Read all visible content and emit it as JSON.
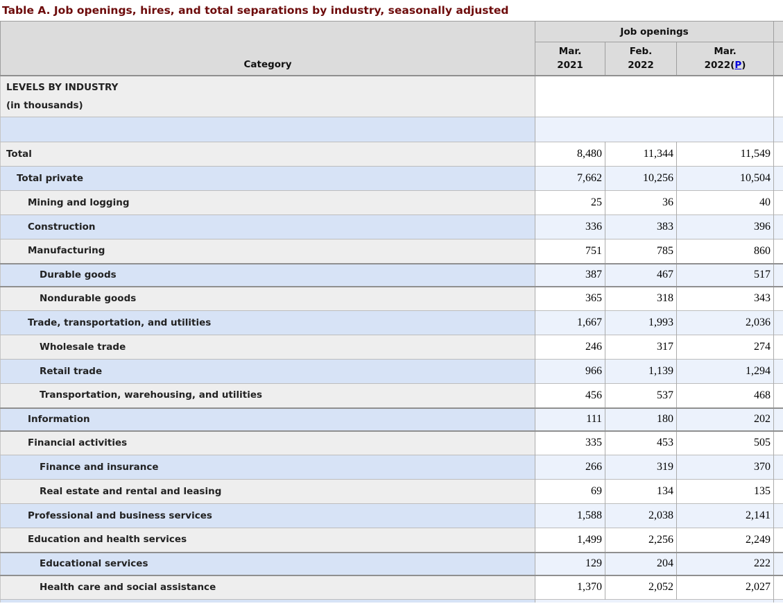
{
  "title": "Table A. Job openings, hires, and total separations by industry, seasonally adjusted",
  "table": {
    "category_header": "Category",
    "group_header": "Job openings",
    "columns": [
      {
        "line1": "Mar.",
        "line2": "2021"
      },
      {
        "line1": "Feb.",
        "line2": "2022"
      },
      {
        "line1": "Mar.",
        "line2_pre": "2022(",
        "preliminary_link": "P",
        "line2_post": ")"
      }
    ],
    "section_row": {
      "line1": "LEVELS BY INDUSTRY",
      "line2": "(in thousands)"
    },
    "rows": [
      {
        "label": "Total",
        "level": 0,
        "values": [
          "8,480",
          "11,344",
          "11,549"
        ]
      },
      {
        "label": "Total private",
        "level": 1,
        "values": [
          "7,662",
          "10,256",
          "10,504"
        ]
      },
      {
        "label": "Mining and logging",
        "level": 2,
        "values": [
          "25",
          "36",
          "40"
        ]
      },
      {
        "label": "Construction",
        "level": 2,
        "values": [
          "336",
          "383",
          "396"
        ]
      },
      {
        "label": "Manufacturing",
        "level": 2,
        "values": [
          "751",
          "785",
          "860"
        ]
      },
      {
        "label": "Durable goods",
        "level": 3,
        "values": [
          "387",
          "467",
          "517"
        ],
        "section_break": true
      },
      {
        "label": "Nondurable goods",
        "level": 3,
        "values": [
          "365",
          "318",
          "343"
        ]
      },
      {
        "label": "Trade, transportation, and utilities",
        "level": 2,
        "values": [
          "1,667",
          "1,993",
          "2,036"
        ]
      },
      {
        "label": "Wholesale trade",
        "level": 3,
        "values": [
          "246",
          "317",
          "274"
        ]
      },
      {
        "label": "Retail trade",
        "level": 3,
        "values": [
          "966",
          "1,139",
          "1,294"
        ]
      },
      {
        "label": "Transportation, warehousing, and utilities",
        "level": 3,
        "values": [
          "456",
          "537",
          "468"
        ]
      },
      {
        "label": "Information",
        "level": 2,
        "values": [
          "111",
          "180",
          "202"
        ],
        "section_break": true
      },
      {
        "label": "Financial activities",
        "level": 2,
        "values": [
          "335",
          "453",
          "505"
        ]
      },
      {
        "label": "Finance and insurance",
        "level": 3,
        "values": [
          "266",
          "319",
          "370"
        ]
      },
      {
        "label": "Real estate and rental and leasing",
        "level": 3,
        "values": [
          "69",
          "134",
          "135"
        ]
      },
      {
        "label": "Professional and business services",
        "level": 2,
        "values": [
          "1,588",
          "2,038",
          "2,141"
        ]
      },
      {
        "label": "Education and health services",
        "level": 2,
        "values": [
          "1,499",
          "2,256",
          "2,249"
        ]
      },
      {
        "label": "Educational services",
        "level": 3,
        "values": [
          "129",
          "204",
          "222"
        ],
        "section_break": true
      },
      {
        "label": "Health care and social assistance",
        "level": 3,
        "values": [
          "1,370",
          "2,052",
          "2,027"
        ]
      }
    ]
  },
  "colors": {
    "title_maroon": "#6d0b0b",
    "header_bg": "#dcdcdc",
    "category_gray": "#eeeeee",
    "category_blue": "#d7e3f6",
    "cell_white": "#ffffff",
    "cell_pale_blue": "#ecf2fc",
    "link_blue": "#0000dd"
  }
}
